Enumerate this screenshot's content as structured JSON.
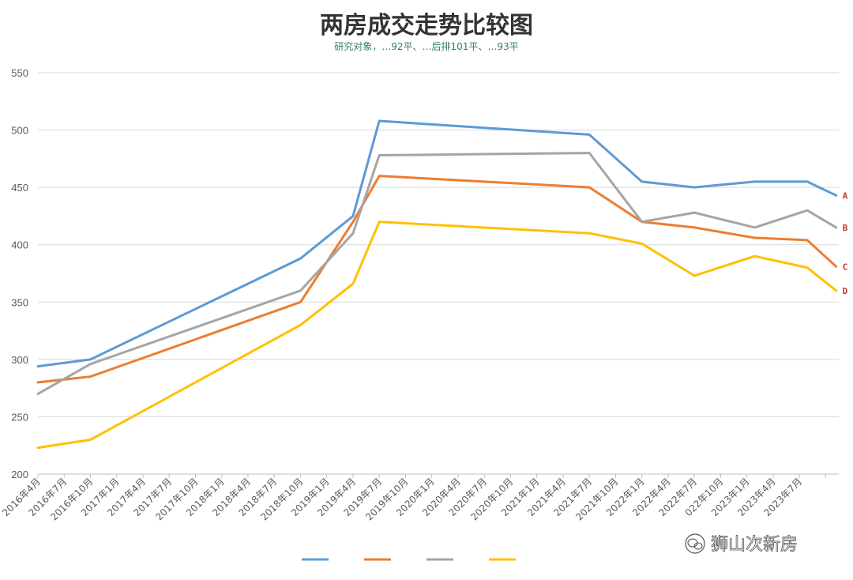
{
  "chart_data": {
    "type": "line",
    "title": "两房成交走势比较图",
    "subtitle": "研究对象，…92平、…后排101平、…93平",
    "xlabel": "",
    "ylabel": "",
    "ylim": [
      200,
      550
    ],
    "yticks": [
      200,
      250,
      300,
      350,
      400,
      450,
      500,
      550
    ],
    "grid": true,
    "legend": "bottom",
    "categories": [
      "2016年4月",
      "2016年7月",
      "2016年10月",
      "2017年1月",
      "2017年4月",
      "2017年7月",
      "2017年10月",
      "2018年1月",
      "2018年4月",
      "2018年7月",
      "2018年10月",
      "2019年1月",
      "2019年4月",
      "2019年7月",
      "2019年10月",
      "2020年1月",
      "2020年4月",
      "2020年7月",
      "2020年10月",
      "2021年1月",
      "2021年4月",
      "2021年7月",
      "2021年10月",
      "2022年1月",
      "2022年4月",
      "2022年7月",
      "022年10月",
      "2023年1月",
      "2023年4月",
      "2023年7月"
    ],
    "series": [
      {
        "name": "",
        "end_label": "A",
        "color": "#5b9bd5",
        "points": [
          [
            0,
            294
          ],
          [
            2,
            300
          ],
          [
            10,
            388
          ],
          [
            12,
            425
          ],
          [
            13,
            508
          ],
          [
            21,
            496
          ],
          [
            23,
            455
          ],
          [
            25,
            450
          ],
          [
            27.3,
            455
          ],
          [
            29.3,
            455
          ],
          [
            30.4,
            443
          ]
        ]
      },
      {
        "name": "",
        "end_label": "B",
        "color": "#a5a5a5",
        "points": [
          [
            0,
            270
          ],
          [
            2,
            296
          ],
          [
            10,
            360
          ],
          [
            12,
            410
          ],
          [
            13,
            478
          ],
          [
            21,
            480
          ],
          [
            23,
            420
          ],
          [
            25,
            428
          ],
          [
            27.3,
            415
          ],
          [
            29.3,
            430
          ],
          [
            30.4,
            415
          ]
        ]
      },
      {
        "name": "",
        "end_label": "C",
        "color": "#ed7d31",
        "points": [
          [
            0,
            280
          ],
          [
            2,
            285
          ],
          [
            10,
            350
          ],
          [
            12,
            420
          ],
          [
            13,
            460
          ],
          [
            21,
            450
          ],
          [
            23,
            420
          ],
          [
            25,
            415
          ],
          [
            27.3,
            406
          ],
          [
            29.3,
            404
          ],
          [
            30.4,
            381
          ]
        ]
      },
      {
        "name": "",
        "end_label": "D",
        "color": "#ffc000",
        "points": [
          [
            0,
            223
          ],
          [
            2,
            230
          ],
          [
            10,
            330
          ],
          [
            12,
            366
          ],
          [
            13,
            420
          ],
          [
            21,
            410
          ],
          [
            23,
            401
          ],
          [
            25,
            373
          ],
          [
            27.3,
            390
          ],
          [
            29.3,
            380
          ],
          [
            30.4,
            360
          ]
        ]
      }
    ]
  },
  "legend_order": [
    0,
    2,
    1,
    3
  ],
  "watermark": {
    "icon": "wechat-icon",
    "text": "狮山次新房"
  }
}
